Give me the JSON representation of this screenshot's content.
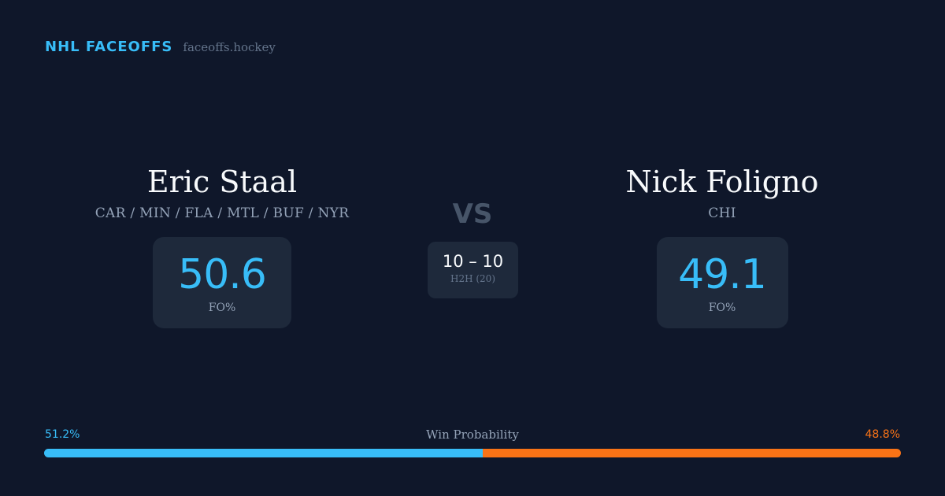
{
  "brand": {
    "name": "NHL FACEOFFS",
    "site": "faceoffs.hockey"
  },
  "players": {
    "left": {
      "name": "Eric Staal",
      "teams": "CAR / MIN / FLA / MTL / BUF / NYR",
      "stat_value": "50.6",
      "stat_label": "FO%"
    },
    "right": {
      "name": "Nick Foligno",
      "teams": "CHI",
      "stat_value": "49.1",
      "stat_label": "FO%"
    }
  },
  "versus": {
    "label": "VS",
    "h2h_score": "10 – 10",
    "h2h_label": "H2H (20)"
  },
  "win_probability": {
    "title": "Win Probability",
    "left_label": "51.2%",
    "right_label": "48.8%",
    "left_fraction": 0.512,
    "right_fraction": 0.488,
    "left_color": "#38bdf8",
    "right_color": "#f97316"
  }
}
